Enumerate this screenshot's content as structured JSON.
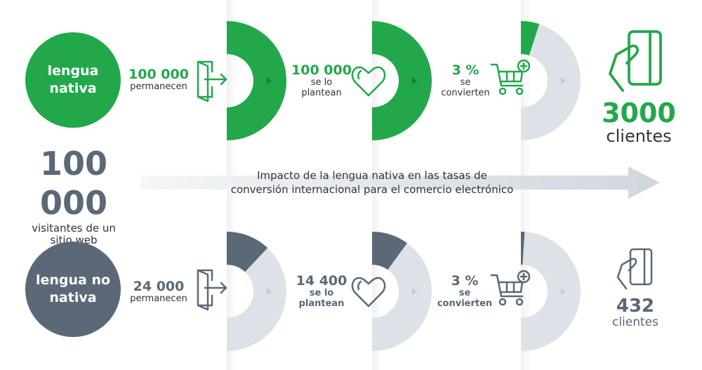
{
  "colors": {
    "green": "#22a84a",
    "slate": "#5a6877",
    "light": "#dde2e8"
  },
  "total": {
    "value": "100 000",
    "label": "visitantes de un sitio web"
  },
  "title": {
    "line1": "Impacto de la lengua nativa en las tasas de",
    "line2": "conversión internacional para el comercio electrónico"
  },
  "native": {
    "circle": {
      "line1": "lengua",
      "line2": "nativa"
    },
    "steps": [
      {
        "value": "100 000",
        "l1": "permanecen",
        "l2": "",
        "icon": "door-exit-icon",
        "fill": 1.0
      },
      {
        "value": "100 000",
        "l1": "se lo",
        "l2": "plantean",
        "icon": "heart-icon",
        "fill": 1.0
      },
      {
        "value": "3 %",
        "l1": "se",
        "l2": "convierten",
        "icon": "cart-add-icon",
        "fill": 0.1
      }
    ],
    "result": {
      "value": "3000",
      "label": "clientes",
      "icon": "card-hand-icon"
    }
  },
  "non_native": {
    "circle": {
      "line1": "lengua no",
      "line2": "nativa"
    },
    "steps": [
      {
        "value": "24 000",
        "l1": "permanecen",
        "l2": "",
        "icon": "door-exit-icon",
        "fill": 0.24
      },
      {
        "value": "14 400",
        "l1": "se lo",
        "l2": "plantean",
        "icon": "heart-icon",
        "fill": 0.2
      },
      {
        "value": "3 %",
        "l1": "se",
        "l2": "convierten",
        "icon": "cart-add-icon",
        "fill": 0.02
      }
    ],
    "result": {
      "value": "432",
      "label": "clientes",
      "icon": "card-hand-icon"
    }
  }
}
